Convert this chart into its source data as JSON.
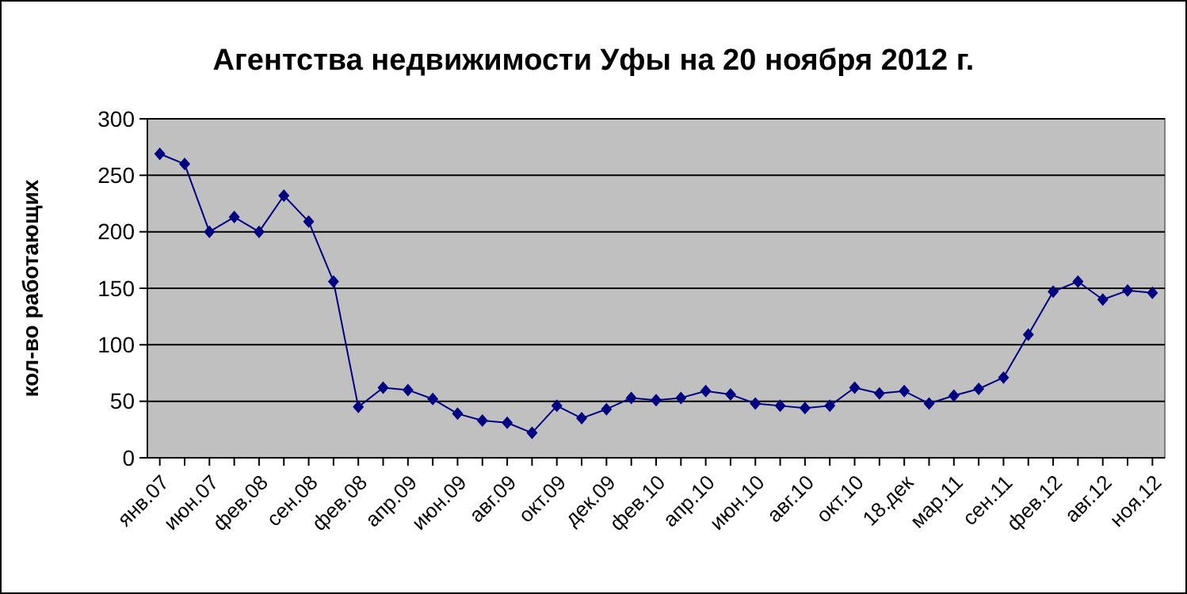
{
  "chart_data": {
    "type": "line",
    "title": "Агентства недвижимости Уфы на 20 ноября 2012 г.",
    "ylabel": "кол-во работающих",
    "categories": [
      "янв.07",
      null,
      "июн.07",
      null,
      "фев.08",
      null,
      "сен.08",
      null,
      "фев.08",
      null,
      "апр.09",
      null,
      "июн.09",
      null,
      "авг.09",
      null,
      "окт.09",
      null,
      "дек.09",
      null,
      "фев.10",
      null,
      "апр.10",
      null,
      "июн.10",
      null,
      "авг.10",
      null,
      "окт.10",
      null,
      "18.дек",
      null,
      "мар.11",
      null,
      "сен.11",
      null,
      "фев.12",
      null,
      "авг.12",
      null,
      "ноя.12"
    ],
    "series": [
      {
        "color": "#000080",
        "values": [
          269,
          260,
          200,
          213,
          200,
          232,
          209,
          156,
          45,
          62,
          60,
          52,
          39,
          33,
          31,
          22,
          46,
          35,
          43,
          53,
          51,
          53,
          59,
          56,
          48,
          46,
          44,
          46,
          62,
          57,
          59,
          48,
          55,
          61,
          71,
          109,
          147,
          156,
          140,
          148,
          146
        ]
      }
    ],
    "ylim": [
      0,
      300
    ],
    "yticks": [
      0,
      50,
      100,
      150,
      200,
      250,
      300
    ],
    "grid": "y",
    "marker": "diamond",
    "line_style": "solid"
  }
}
